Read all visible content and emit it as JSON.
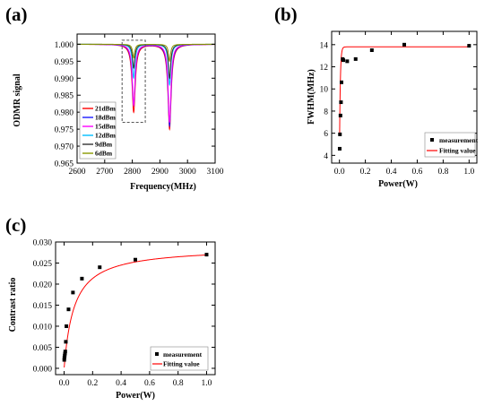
{
  "panel_labels": {
    "a": "(a)",
    "b": "(b)",
    "c": "(c)"
  },
  "chart_data": [
    {
      "id": "a",
      "type": "line",
      "xlabel": "Frequency(MHz)",
      "ylabel": "ODMR signal",
      "xlim": [
        2600,
        3100
      ],
      "ylim": [
        0.965,
        1.003
      ],
      "xticks": [
        2600,
        2700,
        2800,
        2900,
        3000,
        3100
      ],
      "yticks": [
        0.965,
        0.97,
        0.975,
        0.98,
        0.985,
        0.99,
        0.995,
        1.0
      ],
      "xtick_labels": [
        "2600",
        "2700",
        "2800",
        "2900",
        "3000",
        "3100"
      ],
      "ytick_labels": [
        "0.965",
        "0.970",
        "0.975",
        "0.980",
        "0.985",
        "0.990",
        "0.995",
        "1.000"
      ],
      "dip_centers": [
        2805,
        2935
      ],
      "dashed_box": {
        "x": [
          2763,
          2847
        ],
        "y": [
          0.977,
          1.0012
        ]
      },
      "legend_position": "bottom-left",
      "series": [
        {
          "name": "21dBm",
          "color": "#ff0000",
          "depths": [
            0.02,
            0.025
          ],
          "width": 7
        },
        {
          "name": "18dBm",
          "color": "#1a1aff",
          "depths": [
            0.018,
            0.024
          ],
          "width": 6.5
        },
        {
          "name": "15dBm",
          "color": "#ff00ff",
          "depths": [
            0.018,
            0.023
          ],
          "width": 6
        },
        {
          "name": "12dBm",
          "color": "#00bfff",
          "depths": [
            0.01,
            0.012
          ],
          "width": 5.5
        },
        {
          "name": "9dBm",
          "color": "#333333",
          "depths": [
            0.007,
            0.01
          ],
          "width": 5
        },
        {
          "name": "6dBm",
          "color": "#8a9a00",
          "depths": [
            0.004,
            0.005
          ],
          "width": 4.5
        }
      ]
    },
    {
      "id": "b",
      "type": "scatter",
      "xlabel": "Power(W)",
      "ylabel": "FWHM(MHz)",
      "xlim": [
        -0.06,
        1.06
      ],
      "ylim": [
        3.3,
        15.2
      ],
      "xticks": [
        0.0,
        0.2,
        0.4,
        0.6,
        0.8,
        1.0
      ],
      "yticks": [
        4,
        6,
        8,
        10,
        12,
        14
      ],
      "xtick_labels": [
        "0.0",
        "0.2",
        "0.4",
        "0.6",
        "0.8",
        "1.0"
      ],
      "ytick_labels": [
        "4",
        "6",
        "8",
        "10",
        "12",
        "14"
      ],
      "legend_position": "bottom-right",
      "series": [
        {
          "name": "measurement",
          "kind": "scatter",
          "color": "#000000",
          "x": [
            0.002,
            0.004,
            0.008,
            0.012,
            0.016,
            0.025,
            0.03,
            0.06,
            0.125,
            0.25,
            0.5,
            1.0
          ],
          "y": [
            4.6,
            5.9,
            7.6,
            8.8,
            10.6,
            12.7,
            12.6,
            12.5,
            12.7,
            13.5,
            14.0,
            13.9
          ]
        },
        {
          "name": "Fitting value",
          "kind": "line",
          "color": "#ff0000",
          "model": {
            "a": 13.8,
            "b": 10.3,
            "c": 0.006,
            "x0": 0.0015,
            "x1": 1.0
          }
        }
      ]
    },
    {
      "id": "c",
      "type": "scatter",
      "xlabel": "Power(W)",
      "ylabel": "Contrast ratio",
      "xlim": [
        -0.06,
        1.06
      ],
      "ylim": [
        -0.0015,
        0.03
      ],
      "xticks": [
        0.0,
        0.2,
        0.4,
        0.6,
        0.8,
        1.0
      ],
      "yticks": [
        0.0,
        0.005,
        0.01,
        0.015,
        0.02,
        0.025,
        0.03
      ],
      "xtick_labels": [
        "0.0",
        "0.2",
        "0.4",
        "0.6",
        "0.8",
        "1.0"
      ],
      "ytick_labels": [
        "0.000",
        "0.005",
        "0.010",
        "0.015",
        "0.020",
        "0.025",
        "0.030"
      ],
      "legend_position": "bottom-right",
      "series": [
        {
          "name": "measurement",
          "kind": "scatter",
          "color": "#000000",
          "x": [
            0.001,
            0.002,
            0.004,
            0.006,
            0.008,
            0.012,
            0.016,
            0.031,
            0.062,
            0.125,
            0.25,
            0.5,
            1.0
          ],
          "y": [
            0.002,
            0.0025,
            0.003,
            0.0035,
            0.004,
            0.0063,
            0.01,
            0.014,
            0.018,
            0.0213,
            0.024,
            0.0258,
            0.027
          ]
        },
        {
          "name": "Fitting value",
          "kind": "line",
          "color": "#ff0000",
          "model": {
            "a": 0.0288,
            "c": 0.07,
            "x0": 0.0005,
            "x1": 1.0
          }
        }
      ]
    }
  ]
}
